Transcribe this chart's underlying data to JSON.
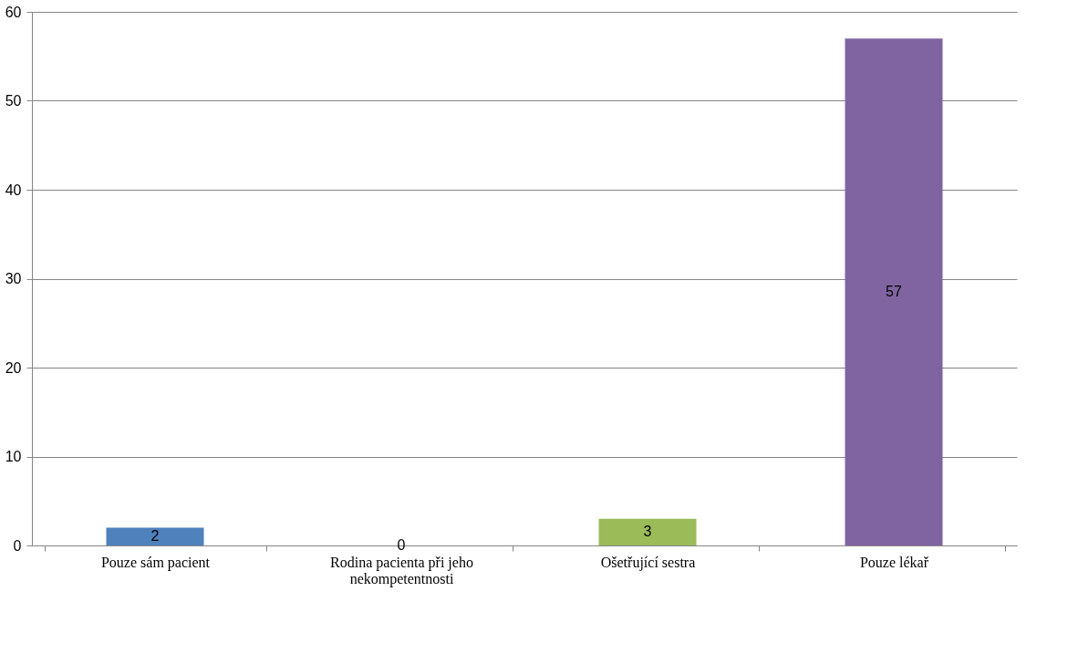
{
  "chart_data": {
    "type": "bar",
    "categories": [
      "Pouze sám pacient",
      "Rodina pacienta při jeho nekompetentnosti",
      "Ošetřující sestra",
      "Pouze lékař"
    ],
    "values": [
      2,
      0,
      3,
      57
    ],
    "colors": [
      "#4f81bd",
      "#c0504d",
      "#9bbb59",
      "#8064a2"
    ],
    "ylim": [
      0,
      60
    ],
    "yticks": [
      0,
      10,
      20,
      30,
      40,
      50,
      60
    ],
    "grid": "y",
    "data_labels": true,
    "legend": false
  }
}
